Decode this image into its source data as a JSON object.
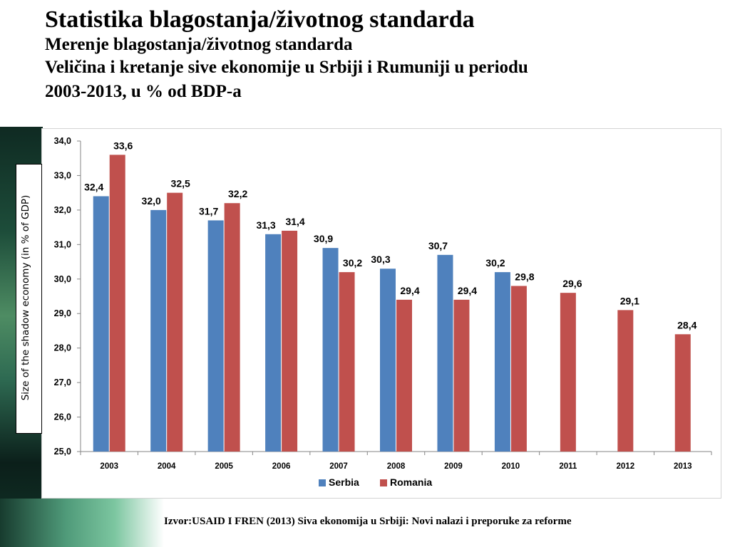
{
  "slide": {
    "title": "Statistika blagostanja/životnog standarda",
    "subtitle": "Merenje blagostanja/životnog standarda",
    "heading_line1": "Veličina i kretanje sive ekonomije u Srbiji i Rumuniji u periodu",
    "heading_line2": "2003-2013, u % od BDP-a",
    "source": "Izvor:USAID I FREN (2013) Siva ekonomija u Srbiji: Novi nalazi i preporuke za reforme"
  },
  "chart_data": {
    "type": "bar",
    "ylabel": "Size of the shadow economy (in % of GDP)",
    "ylim": [
      25.0,
      34.0
    ],
    "yticks": [
      "25,0",
      "26,0",
      "27,0",
      "28,0",
      "29,0",
      "30,0",
      "31,0",
      "32,0",
      "33,0",
      "34,0"
    ],
    "categories": [
      "2003",
      "2004",
      "2005",
      "2006",
      "2007",
      "2008",
      "2009",
      "2010",
      "2011",
      "2012",
      "2013"
    ],
    "series": [
      {
        "name": "Serbia",
        "color": "#4f81bd",
        "values": [
          32.4,
          32.0,
          31.7,
          31.3,
          30.9,
          30.3,
          30.7,
          30.2,
          null,
          null,
          null
        ],
        "labels": [
          "32,4",
          "32,0",
          "31,7",
          "31,3",
          "30,9",
          "30,3",
          "30,7",
          "30,2",
          "",
          "",
          ""
        ]
      },
      {
        "name": "Romania",
        "color": "#c0504d",
        "values": [
          33.6,
          32.5,
          32.2,
          31.4,
          30.2,
          29.4,
          29.4,
          29.8,
          29.6,
          29.1,
          28.4
        ],
        "labels": [
          "33,6",
          "32,5",
          "32,2",
          "31,4",
          "30,2",
          "29,4",
          "29,4",
          "29,8",
          "29,6",
          "29,1",
          "28,4"
        ]
      }
    ],
    "legend_position": "bottom",
    "grid": false
  }
}
